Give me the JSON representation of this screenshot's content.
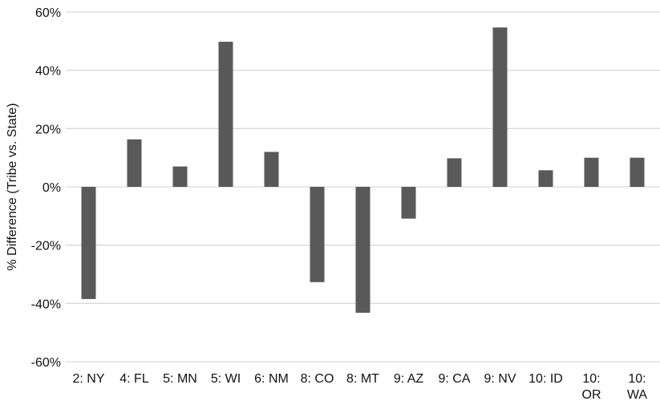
{
  "chart_data": {
    "type": "bar",
    "categories": [
      "2: NY",
      "4: FL",
      "5: MN",
      "5: WI",
      "6: NM",
      "8: CO",
      "8: MT",
      "9: AZ",
      "9: CA",
      "9: NV",
      "10: ID",
      "10: OR",
      "10: WA"
    ],
    "category_lines": [
      [
        "2: NY"
      ],
      [
        "4: FL"
      ],
      [
        "5: MN"
      ],
      [
        "5: WI"
      ],
      [
        "6: NM"
      ],
      [
        "8: CO"
      ],
      [
        "8: MT"
      ],
      [
        "9: AZ"
      ],
      [
        "9: CA"
      ],
      [
        "9: NV"
      ],
      [
        "10: ID"
      ],
      [
        "10:",
        "OR"
      ],
      [
        "10:",
        "WA"
      ]
    ],
    "values": [
      -38.5,
      16.3,
      7.0,
      49.8,
      12.0,
      -32.7,
      -43.2,
      -10.9,
      9.8,
      54.7,
      5.7,
      10.0,
      10.0
    ],
    "ylabel": "% Difference (Tribe vs. State)",
    "xlabel": "",
    "ylim": [
      -60,
      60
    ],
    "yticks": [
      60,
      40,
      20,
      0,
      -20,
      -40,
      -60
    ],
    "ytick_labels": [
      "60%",
      "40%",
      "20%",
      "0%",
      "-20%",
      "-40%",
      "-60%"
    ],
    "grid": true,
    "bar_color": "#595959",
    "grid_color": "#d9d9d9"
  }
}
